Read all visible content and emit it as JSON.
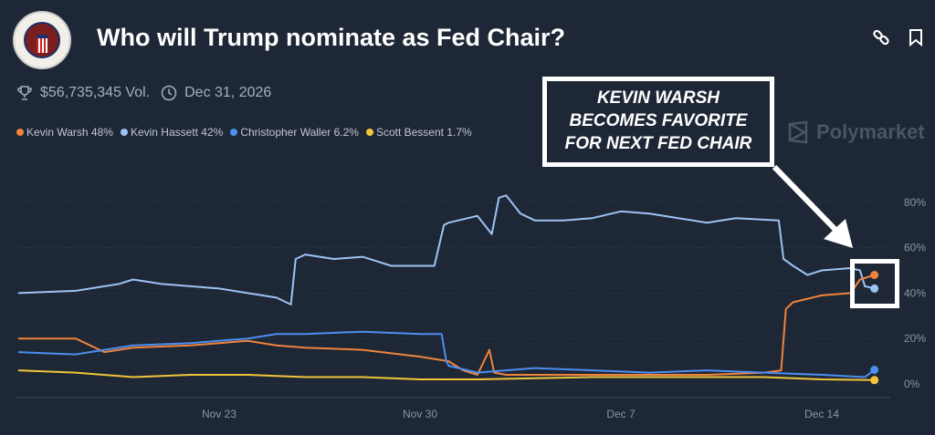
{
  "header": {
    "title": "Who will Trump nominate as Fed Chair?",
    "volume": "$56,735,345 Vol.",
    "end_date": "Dec 31, 2026",
    "icons": [
      "trophy-icon",
      "clock-icon",
      "link-icon",
      "bookmark-icon"
    ]
  },
  "legend": [
    {
      "label": "Kevin Warsh 48%",
      "color": "#f0843c"
    },
    {
      "label": "Kevin Hassett 42%",
      "color": "#9cc3f5"
    },
    {
      "label": "Christopher Waller 6.2%",
      "color": "#4d8ef0"
    },
    {
      "label": "Scott Bessent 1.7%",
      "color": "#f2c43a"
    }
  ],
  "watermark": "Polymarket",
  "annotation": {
    "lines": [
      "KEVIN WARSH",
      "BECOMES FAVORITE",
      "FOR NEXT FED CHAIR"
    ]
  },
  "chart_data": {
    "type": "line",
    "title": "",
    "xlabel": "",
    "ylabel": "",
    "x_ticks": [
      "Nov 23",
      "Nov 30",
      "Dec 7",
      "Dec 14"
    ],
    "y_ticks": [
      "0%",
      "20%",
      "40%",
      "60%",
      "80%"
    ],
    "ylim": [
      0,
      85
    ],
    "xlim": [
      "Nov 16 00:00",
      "Dec 15 20:00"
    ],
    "grid": "horizontal dotted",
    "y_axis_side": "right",
    "series": [
      {
        "name": "Kevin Hassett",
        "color": "#9cc3f5",
        "points": [
          [
            "Nov 16 00:00",
            40
          ],
          [
            "Nov 18 00:00",
            41
          ],
          [
            "Nov 19 12:00",
            44
          ],
          [
            "Nov 20 00:00",
            46
          ],
          [
            "Nov 21 00:00",
            44
          ],
          [
            "Nov 22 00:00",
            43
          ],
          [
            "Nov 23 00:00",
            42
          ],
          [
            "Nov 24 00:00",
            40
          ],
          [
            "Nov 25 00:00",
            38
          ],
          [
            "Nov 25 12:00",
            35
          ],
          [
            "Nov 25 16:00",
            55
          ],
          [
            "Nov 26 00:00",
            57
          ],
          [
            "Nov 27 00:00",
            55
          ],
          [
            "Nov 28 00:00",
            56
          ],
          [
            "Nov 29 00:00",
            52
          ],
          [
            "Nov 30 12:00",
            52
          ],
          [
            "Nov 30 20:00",
            70
          ],
          [
            "Dec 1 00:00",
            71
          ],
          [
            "Dec 2 00:00",
            74
          ],
          [
            "Dec 2 12:00",
            66
          ],
          [
            "Dec 2 18:00",
            82
          ],
          [
            "Dec 3 00:00",
            83
          ],
          [
            "Dec 3 12:00",
            75
          ],
          [
            "Dec 4 00:00",
            72
          ],
          [
            "Dec 5 00:00",
            72
          ],
          [
            "Dec 6 00:00",
            73
          ],
          [
            "Dec 7 00:00",
            76
          ],
          [
            "Dec 8 00:00",
            75
          ],
          [
            "Dec 9 00:00",
            73
          ],
          [
            "Dec 10 00:00",
            71
          ],
          [
            "Dec 11 00:00",
            73
          ],
          [
            "Dec 12 12:00",
            72
          ],
          [
            "Dec 12 16:00",
            55
          ],
          [
            "Dec 13 00:00",
            52
          ],
          [
            "Dec 13 12:00",
            48
          ],
          [
            "Dec 14 00:00",
            50
          ],
          [
            "Dec 15 00:00",
            51
          ],
          [
            "Dec 15 08:00",
            50
          ],
          [
            "Dec 15 12:00",
            43
          ],
          [
            "Dec 15 20:00",
            42
          ]
        ]
      },
      {
        "name": "Kevin Warsh",
        "color": "#f0843c",
        "points": [
          [
            "Nov 16 00:00",
            20
          ],
          [
            "Nov 18 00:00",
            20
          ],
          [
            "Nov 19 00:00",
            14
          ],
          [
            "Nov 20 00:00",
            16
          ],
          [
            "Nov 22 00:00",
            17
          ],
          [
            "Nov 23 00:00",
            18
          ],
          [
            "Nov 24 00:00",
            19
          ],
          [
            "Nov 25 00:00",
            17
          ],
          [
            "Nov 26 00:00",
            16
          ],
          [
            "Nov 28 00:00",
            15
          ],
          [
            "Nov 30 00:00",
            12
          ],
          [
            "Dec 1 00:00",
            10
          ],
          [
            "Dec 1 12:00",
            6
          ],
          [
            "Dec 2 00:00",
            4
          ],
          [
            "Dec 2 10:00",
            15
          ],
          [
            "Dec 2 14:00",
            5
          ],
          [
            "Dec 3 00:00",
            4
          ],
          [
            "Dec 5 00:00",
            4
          ],
          [
            "Dec 8 00:00",
            4
          ],
          [
            "Dec 10 00:00",
            4
          ],
          [
            "Dec 12 00:00",
            5
          ],
          [
            "Dec 12 14:00",
            6
          ],
          [
            "Dec 12 18:00",
            33
          ],
          [
            "Dec 13 00:00",
            36
          ],
          [
            "Dec 14 00:00",
            39
          ],
          [
            "Dec 15 00:00",
            40
          ],
          [
            "Dec 15 08:00",
            46
          ],
          [
            "Dec 15 20:00",
            48
          ]
        ]
      },
      {
        "name": "Christopher Waller",
        "color": "#4d8ef0",
        "points": [
          [
            "Nov 16 00:00",
            14
          ],
          [
            "Nov 18 00:00",
            13
          ],
          [
            "Nov 20 00:00",
            17
          ],
          [
            "Nov 22 00:00",
            18
          ],
          [
            "Nov 24 00:00",
            20
          ],
          [
            "Nov 25 00:00",
            22
          ],
          [
            "Nov 26 00:00",
            22
          ],
          [
            "Nov 28 00:00",
            23
          ],
          [
            "Nov 30 00:00",
            22
          ],
          [
            "Nov 30 18:00",
            22
          ],
          [
            "Nov 30 22:00",
            10
          ],
          [
            "Dec 1 00:00",
            8
          ],
          [
            "Dec 2 00:00",
            5
          ],
          [
            "Dec 4 00:00",
            7
          ],
          [
            "Dec 6 00:00",
            6
          ],
          [
            "Dec 8 00:00",
            5
          ],
          [
            "Dec 10 00:00",
            6
          ],
          [
            "Dec 12 00:00",
            5
          ],
          [
            "Dec 14 00:00",
            4
          ],
          [
            "Dec 15 12:00",
            3
          ],
          [
            "Dec 15 20:00",
            6.2
          ]
        ]
      },
      {
        "name": "Scott Bessent",
        "color": "#f2c43a",
        "points": [
          [
            "Nov 16 00:00",
            6
          ],
          [
            "Nov 18 00:00",
            5
          ],
          [
            "Nov 20 00:00",
            3
          ],
          [
            "Nov 22 00:00",
            4
          ],
          [
            "Nov 24 00:00",
            4
          ],
          [
            "Nov 26 00:00",
            3
          ],
          [
            "Nov 28 00:00",
            3
          ],
          [
            "Nov 30 00:00",
            2
          ],
          [
            "Dec 2 00:00",
            2
          ],
          [
            "Dec 4 00:00",
            2.5
          ],
          [
            "Dec 6 00:00",
            3
          ],
          [
            "Dec 8 00:00",
            3
          ],
          [
            "Dec 10 00:00",
            3
          ],
          [
            "Dec 12 00:00",
            3
          ],
          [
            "Dec 14 00:00",
            2
          ],
          [
            "Dec 15 20:00",
            1.7
          ]
        ]
      }
    ]
  }
}
